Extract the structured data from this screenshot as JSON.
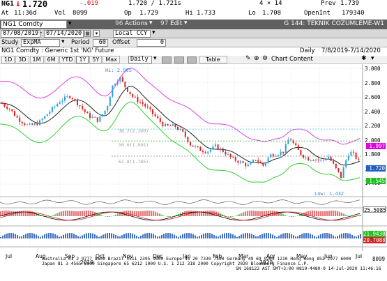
{
  "quote": {
    "ticker": "NG1",
    "last": "1.720",
    "change": "-.019",
    "bid_ask": "1.720 / 1.721s",
    "size": "4 × 14",
    "prev_label": "Prev",
    "prev": "1.739",
    "at_label": "At",
    "time": "11:36d",
    "vol_label": "Vol",
    "volume": "8099",
    "op_label": "Op",
    "open": "1.729",
    "hi_label": "Hi",
    "high": "1.733",
    "lo_label": "Lo",
    "low": "1.708",
    "oi_label": "OpenInt",
    "open_interest": "179340"
  },
  "titlebar": {
    "security": "NG1 Comdty",
    "actions_num": "96",
    "actions_label": "Actions",
    "edit_num": "97",
    "edit_label": "Edit",
    "page_title": "G 144: TEKNIK COZUMLEME-W1"
  },
  "filters": {
    "start_date": "07/08/2019",
    "end_date": "07/14/2020",
    "currency": "Local CCY"
  },
  "study": {
    "study_label": "Study",
    "study_value": "ExpMA",
    "period_label": "Period",
    "period_value": "60",
    "offset_label": "Offset",
    "offset_value": "0"
  },
  "desc": {
    "security_desc": "NG1 Comdty : Generic 1st 'NG' Future",
    "frequency": "Daily",
    "range": "7/8/2019-7/14/2020"
  },
  "periods": {
    "buttons": [
      "1D",
      "3D",
      "1M",
      "6M",
      "YTD",
      "1Y",
      "5Y",
      "Max"
    ],
    "selected": "1Y",
    "freq_value": "Daily",
    "table_label": "Table",
    "chart_content_label": "Chart Content"
  },
  "chart": {
    "hi_label": "Hi: 2.905",
    "low_label": "Low: 1.432",
    "fib_1": "38.2(2.160)",
    "fib_2": "50.0(1.995)",
    "fib_3": "61.8(1.785)",
    "y_ticks": [
      "3.000",
      "2.800",
      "2.600",
      "2.400",
      "2.200",
      "2.000",
      "1.800",
      "1.600",
      "1.400"
    ],
    "price_tags": [
      {
        "value": "1.997",
        "color": "#e000e0",
        "text_color": "#ffffff"
      },
      {
        "value": "1.720",
        "color": "#2060c0",
        "text_color": "#ffffff"
      },
      {
        "value": "1.545",
        "color": "#20c020",
        "text_color": "#ffffff"
      }
    ],
    "volume_tag": "25.5085",
    "macd_tags": [
      "21.9438",
      "20.7088"
    ],
    "bottom_tag": "8099",
    "month_labels": [
      "Jul",
      "Aug",
      "Sep",
      "Oct",
      "Nov",
      "Dec",
      "Jan",
      "Feb",
      "Mar",
      "Apr",
      "May",
      "Jun",
      "Jul"
    ],
    "year_labels": [
      "2019",
      "2020"
    ]
  },
  "footer": {
    "line1": "Australia 61 2 9777 8600 Brazil 5511 2395 9000 Europe 44 20 7330 7500 Germany 49 69 9204 1210 Hong Kong 852 2977 6000",
    "line2": "Japan 81 3 4565 8900       Singapore 65 6212 1000       U.S. 1 212 318 2000        Copyright 2020 Bloomberg Finance L.P.",
    "line3": "SN 168122 AST  GMT+3:00 H819-4480-0 14-Jul-2020 11:46:16"
  },
  "colors": {
    "upper_band": "#e040e0",
    "lower_band": "#30d030",
    "ema": "#202020",
    "candle_up": "#2aa0d8",
    "candle_down": "#e02020"
  }
}
